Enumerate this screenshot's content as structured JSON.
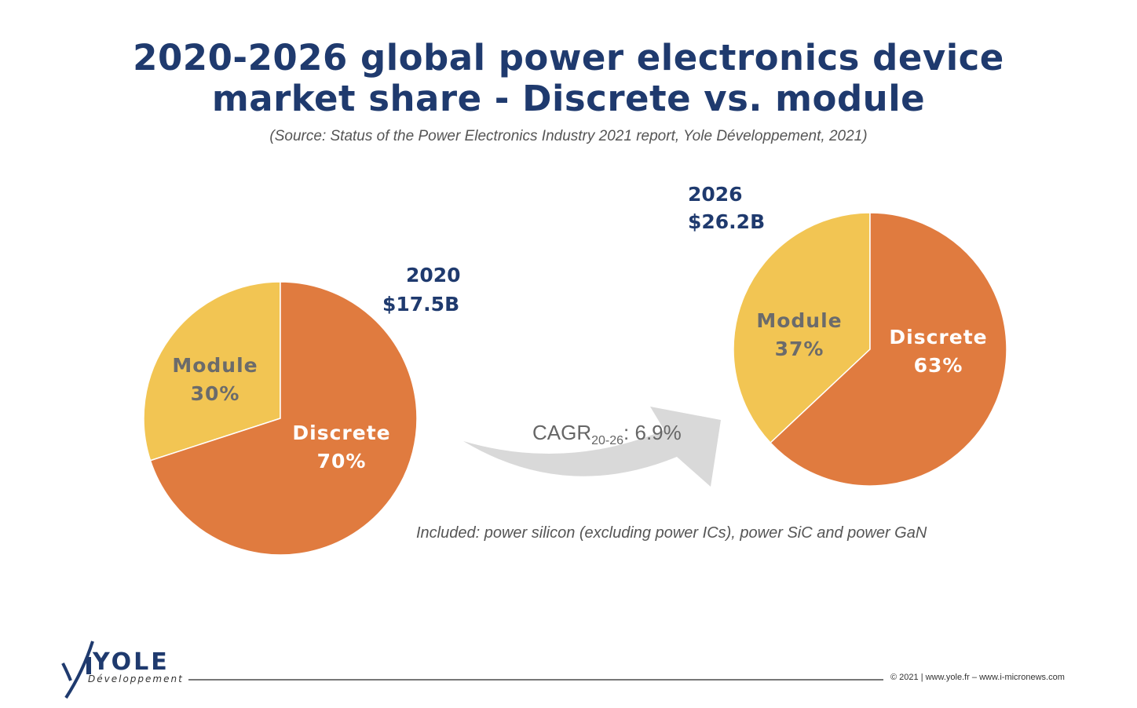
{
  "chart_data": [
    {
      "type": "pie",
      "year_label": "2020",
      "total_label": "$17.5B",
      "slices": [
        {
          "name": "Module",
          "value": 30,
          "label": "30%",
          "color": "#f2c553"
        },
        {
          "name": "Discrete",
          "value": 70,
          "label": "70%",
          "color": "#e07b3f"
        }
      ]
    },
    {
      "type": "pie",
      "year_label": "2026",
      "total_label": "$26.2B",
      "slices": [
        {
          "name": "Module",
          "value": 37,
          "label": "37%",
          "color": "#f2c553"
        },
        {
          "name": "Discrete",
          "value": 63,
          "label": "63%",
          "color": "#e07b3f"
        }
      ]
    }
  ],
  "title_line1": "2020-2026 global power electronics device",
  "title_line2": "market share - Discrete vs. module",
  "subtitle": "(Source: Status of the Power Electronics Industry 2021 report, Yole Développement, 2021)",
  "cagr": {
    "prefix": "CAGR",
    "sub": "20-26",
    "value": ": 6.9%"
  },
  "note": "Included: power silicon (excluding power ICs), power SiC and power GaN",
  "logo": {
    "name": "YOLE",
    "tagline": "Développement"
  },
  "footer": "© 2021 | www.yole.fr – www.i-micronews.com",
  "colors": {
    "title": "#1f3a6e",
    "module": "#f2c553",
    "discrete": "#e07b3f",
    "arrow": "#d9d9d9"
  }
}
